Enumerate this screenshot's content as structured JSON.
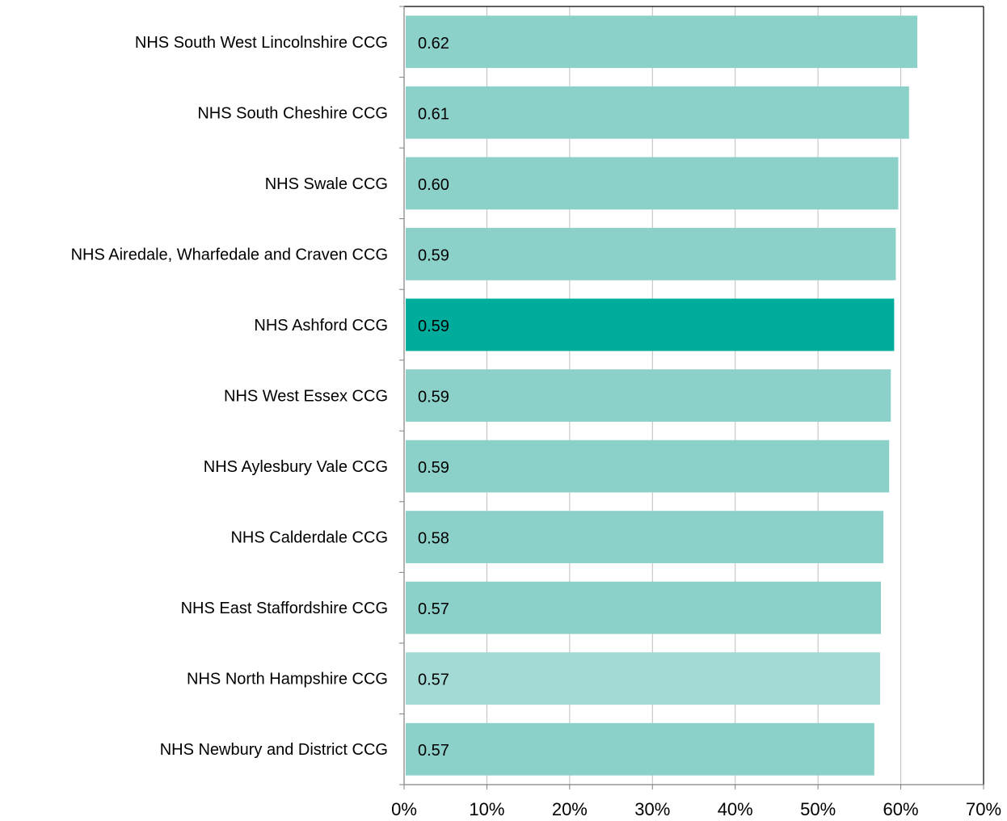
{
  "chart_data": {
    "type": "bar",
    "orientation": "horizontal",
    "title": "",
    "xlabel": "",
    "ylabel": "",
    "categories": [
      "NHS South West Lincolnshire CCG",
      "NHS South Cheshire CCG",
      "NHS Swale CCG",
      "NHS Airedale, Wharfedale and Craven CCG",
      "NHS Ashford CCG",
      "NHS West Essex CCG",
      "NHS Aylesbury Vale CCG",
      "NHS Calderdale CCG",
      "NHS East Staffordshire CCG",
      "NHS North Hampshire CCG",
      "NHS Newbury and District CCG"
    ],
    "values": [
      0.62,
      0.61,
      0.6,
      0.59,
      0.59,
      0.59,
      0.59,
      0.58,
      0.57,
      0.57,
      0.57
    ],
    "data_labels": [
      "0.62",
      "0.61",
      "0.60",
      "0.59",
      "0.59",
      "0.59",
      "0.59",
      "0.58",
      "0.57",
      "0.57",
      "0.57"
    ],
    "bar_lengths": [
      0.62,
      0.61,
      0.597,
      0.594,
      0.592,
      0.588,
      0.586,
      0.579,
      0.576,
      0.575,
      0.568
    ],
    "xlim": [
      0,
      0.7
    ],
    "x_ticks": [
      0,
      0.1,
      0.2,
      0.3,
      0.4,
      0.5,
      0.6,
      0.7
    ],
    "x_tick_labels": [
      "0%",
      "10%",
      "20%",
      "30%",
      "40%",
      "50%",
      "60%",
      "70%"
    ],
    "grid": true,
    "legend": "none",
    "colors": {
      "default": "#8cd1c9",
      "highlight": "#00ac9c",
      "light": "#a3dad5",
      "grid": "#bfbfbf",
      "axis": "#808080",
      "frame": "#000000"
    },
    "bar_color_keys": [
      "default",
      "default",
      "default",
      "default",
      "highlight",
      "default",
      "default",
      "default",
      "default",
      "light",
      "default"
    ]
  }
}
